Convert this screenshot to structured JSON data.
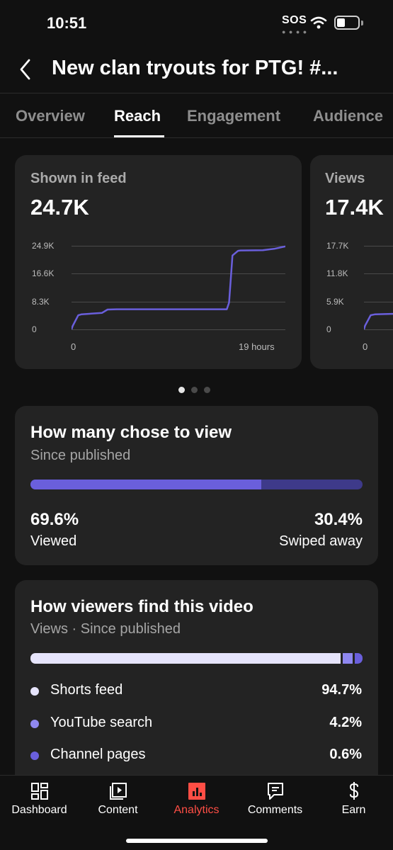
{
  "status_bar": {
    "time": "10:51",
    "sos": "SOS"
  },
  "header": {
    "title": "New clan tryouts for PTG!  #..."
  },
  "tabs": [
    {
      "label": "Overview"
    },
    {
      "label": "Reach"
    },
    {
      "label": "Engagement"
    },
    {
      "label": "Audience"
    }
  ],
  "active_tab": "Reach",
  "feed_card": {
    "label": "Shown in feed",
    "value": "24.7K",
    "y_ticks": [
      "24.9K",
      "16.6K",
      "8.3K",
      "0"
    ],
    "x_ticks": [
      "0",
      "19 hours"
    ]
  },
  "views_card": {
    "label": "Views",
    "value": "17.4K",
    "y_ticks": [
      "17.7K",
      "11.8K",
      "5.9K",
      "0"
    ],
    "x_ticks": [
      "0"
    ]
  },
  "chart_data": [
    {
      "type": "line",
      "title": "Shown in feed",
      "xlabel": "",
      "ylabel": "",
      "x": [
        0,
        0.1,
        0.6,
        0.9,
        2.7,
        3.2,
        4.0,
        7.0,
        10.0,
        13.8,
        14.0,
        14.3,
        14.8,
        15.0,
        17.0,
        18.0,
        19.0
      ],
      "values": [
        0,
        1.0,
        4.2,
        4.5,
        4.9,
        5.9,
        6.0,
        6.0,
        6.0,
        6.0,
        8.0,
        22.0,
        23.4,
        23.5,
        23.6,
        24.0,
        24.7
      ],
      "ylim": [
        0,
        24.9
      ],
      "yunit": "K",
      "x_tick_labels": [
        "0",
        "19 hours"
      ],
      "color": "#6a5fdc"
    },
    {
      "type": "line",
      "title": "Views",
      "xlabel": "",
      "ylabel": "",
      "x": [
        0,
        0.1,
        0.6,
        1.0,
        2.7,
        3.2,
        4.0
      ],
      "values": [
        0,
        0.8,
        3.0,
        3.2,
        3.3,
        4.0,
        4.1
      ],
      "ylim": [
        0,
        17.7
      ],
      "yunit": "K",
      "x_tick_labels": [
        "0"
      ],
      "color": "#6a5fdc",
      "note_visible_portion_only": true
    }
  ],
  "choose_card": {
    "title": "How many chose to view",
    "subtitle": "Since published",
    "viewed_pct": "69.6%",
    "viewed_label": "Viewed",
    "swiped_pct": "30.4%",
    "swiped_label": "Swiped away",
    "viewed_fraction": 0.696,
    "colors": {
      "viewed": "#6a5fdc",
      "swiped": "#3e3a8a"
    }
  },
  "sources_card": {
    "title": "How viewers find this video",
    "subtitle": "Views · Since published",
    "segments": [
      {
        "fraction": 0.947,
        "color": "#e6e4fb"
      },
      {
        "fraction": 0.042,
        "color": "#8f88f0"
      },
      {
        "fraction": 0.006,
        "color": "#6a5fdc"
      },
      {
        "fraction": 0.003,
        "color": "#c36bd6"
      },
      {
        "fraction": 0.002,
        "color": "#7a7a7a"
      }
    ],
    "items": [
      {
        "label": "Shorts feed",
        "value": "94.7%",
        "color": "#e6e4fb"
      },
      {
        "label": "YouTube search",
        "value": "4.2%",
        "color": "#8f88f0"
      },
      {
        "label": "Channel pages",
        "value": "0.6%",
        "color": "#6a5fdc"
      }
    ]
  },
  "bottom_nav": [
    {
      "label": "Dashboard",
      "icon": "dashboard-icon"
    },
    {
      "label": "Content",
      "icon": "content-icon"
    },
    {
      "label": "Analytics",
      "icon": "analytics-icon"
    },
    {
      "label": "Comments",
      "icon": "comments-icon"
    },
    {
      "label": "Earn",
      "icon": "earn-icon"
    }
  ],
  "active_nav": "Analytics",
  "colors": {
    "accent": "#ff4e45",
    "line": "#6a5fdc",
    "card": "#232323"
  }
}
